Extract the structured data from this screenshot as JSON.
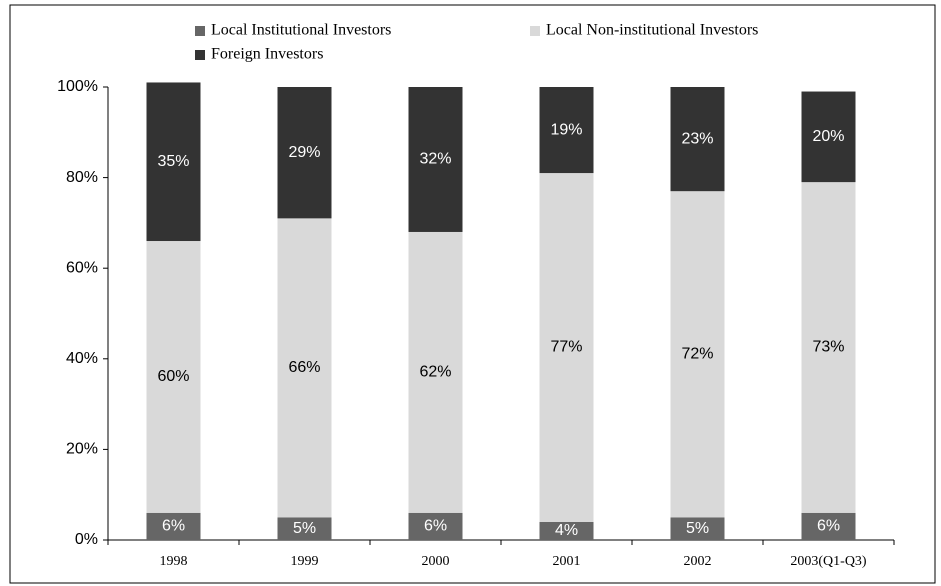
{
  "chart_data": {
    "type": "bar",
    "stacked": true,
    "categories": [
      "1998",
      "1999",
      "2000",
      "2001",
      "2002",
      "2003(Q1-Q3)"
    ],
    "series": [
      {
        "name": "Local Institutional Investors",
        "color": "#666666",
        "label_color": "#ffffff",
        "values": [
          6,
          5,
          6,
          4,
          5,
          6
        ],
        "value_labels": [
          "6%",
          "5%",
          "6%",
          "4%",
          "5%",
          "6%"
        ]
      },
      {
        "name": "Local Non-institutional Investors",
        "color": "#d9d9d9",
        "label_color": "#000000",
        "values": [
          60,
          66,
          62,
          77,
          72,
          73
        ],
        "value_labels": [
          "60%",
          "66%",
          "62%",
          "77%",
          "72%",
          "73%"
        ]
      },
      {
        "name": "Foreign Investors",
        "color": "#333333",
        "label_color": "#ffffff",
        "values": [
          35,
          29,
          32,
          19,
          23,
          20
        ],
        "value_labels": [
          "35%",
          "29%",
          "32%",
          "19%",
          "23%",
          "20%"
        ]
      }
    ],
    "ylim": [
      0,
      100
    ],
    "yticks": [
      {
        "value": 0,
        "label": "0%"
      },
      {
        "value": 20,
        "label": "20%"
      },
      {
        "value": 40,
        "label": "40%"
      },
      {
        "value": 60,
        "label": "60%"
      },
      {
        "value": 80,
        "label": "80%"
      },
      {
        "value": 100,
        "label": "100%"
      }
    ],
    "grid": false
  }
}
